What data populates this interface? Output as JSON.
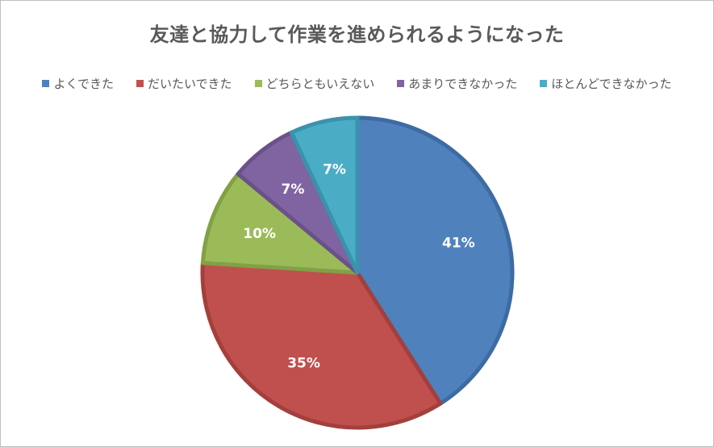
{
  "chart_data": {
    "type": "pie",
    "title": "友達と協力して作業を進められるようになった",
    "categories": [
      "よくできた",
      "だいたいできた",
      "どちらともいえない",
      "あまりできなかった",
      "ほとんどできなかった"
    ],
    "values": [
      41,
      35,
      10,
      7,
      7
    ],
    "value_labels": [
      "41%",
      "35%",
      "10%",
      "7%",
      "7%"
    ],
    "colors": [
      "#4f81bd",
      "#c0504d",
      "#9bbb59",
      "#8064a2",
      "#4bacc6"
    ],
    "border_colors": [
      "#3d6ba3",
      "#a33f3c",
      "#82a046",
      "#6a5289",
      "#3a93ab"
    ],
    "legend_position": "top",
    "start_angle_deg": 0,
    "direction": "clockwise"
  }
}
